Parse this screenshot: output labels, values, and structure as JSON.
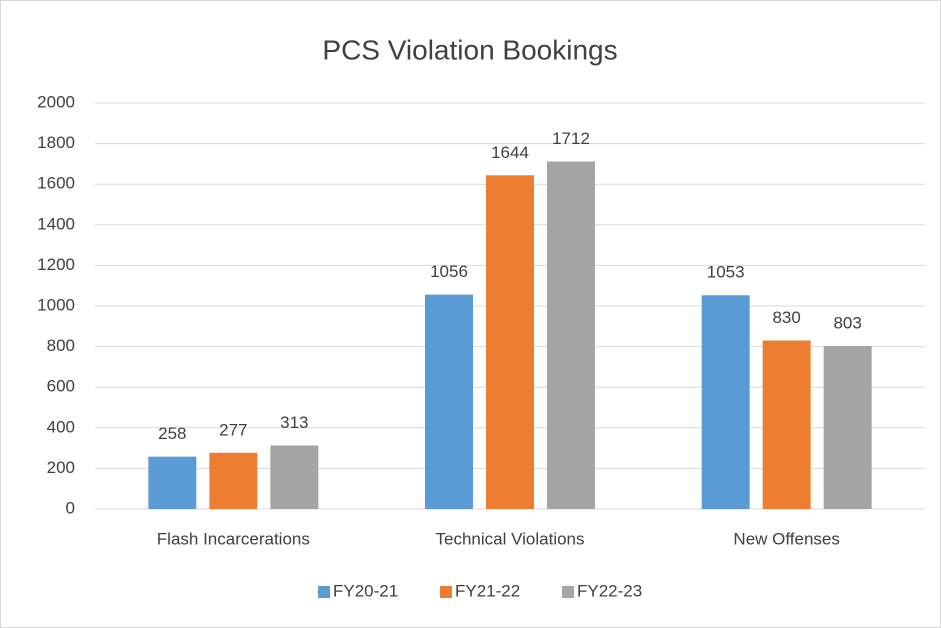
{
  "chart_data": {
    "type": "bar",
    "title": "PCS Violation Bookings",
    "categories": [
      "Flash Incarcerations",
      "Technical Violations",
      "New Offenses"
    ],
    "series": [
      {
        "name": "FY20-21",
        "color": "#5b9bd5",
        "values": [
          258,
          1056,
          1053
        ]
      },
      {
        "name": "FY21-22",
        "color": "#ed7d31",
        "values": [
          277,
          1644,
          830
        ]
      },
      {
        "name": "FY22-23",
        "color": "#a5a5a5",
        "values": [
          313,
          1712,
          803
        ]
      }
    ],
    "ylim": [
      0,
      2000
    ],
    "yticks": [
      0,
      200,
      400,
      600,
      800,
      1000,
      1200,
      1400,
      1600,
      1800,
      2000
    ],
    "grid": true,
    "legend": "bottom"
  }
}
